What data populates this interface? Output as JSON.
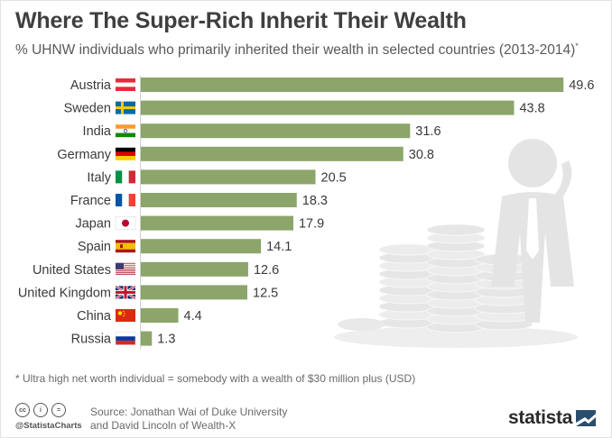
{
  "header": {
    "title": "Where The Super-Rich Inherit Their Wealth",
    "subtitle": "% UHNW individuals who primarily inherited their wealth in selected countries (2013-2014)",
    "subtitle_mark": "*"
  },
  "chart_data": {
    "type": "bar",
    "orientation": "horizontal",
    "title": "Where The Super-Rich Inherit Their Wealth",
    "subtitle": "% UHNW individuals who primarily inherited their wealth in selected countries (2013-2014)*",
    "categories": [
      "Austria",
      "Sweden",
      "India",
      "Germany",
      "Italy",
      "France",
      "Japan",
      "Spain",
      "United States",
      "United Kingdom",
      "China",
      "Russia"
    ],
    "values": [
      49.6,
      43.8,
      31.6,
      30.8,
      20.5,
      18.3,
      17.9,
      14.1,
      12.6,
      12.5,
      4.4,
      1.3
    ],
    "value_labels": [
      "49.6",
      "43.8",
      "31.6",
      "30.8",
      "20.5",
      "18.3",
      "17.9",
      "14.1",
      "12.6",
      "12.5",
      "4.4",
      "1.3"
    ],
    "flags": [
      "austria-flag-icon",
      "sweden-flag-icon",
      "india-flag-icon",
      "germany-flag-icon",
      "italy-flag-icon",
      "france-flag-icon",
      "japan-flag-icon",
      "spain-flag-icon",
      "united-states-flag-icon",
      "united-kingdom-flag-icon",
      "china-flag-icon",
      "russia-flag-icon"
    ],
    "xlim": [
      0,
      50
    ],
    "grid": false,
    "legend": "none",
    "bar_color": "#8ca56a"
  },
  "footer": {
    "footnote": "* Ultra high net worth individual = somebody with a wealth of $30 million plus (USD)",
    "handle": "@StatistaCharts",
    "source_line1": "Source: Jonathan Wai of Duke University",
    "source_line2": "and David Lincoln of Wealth-X",
    "cc_labels": [
      "cc",
      "i",
      "="
    ],
    "logo": "statista"
  }
}
